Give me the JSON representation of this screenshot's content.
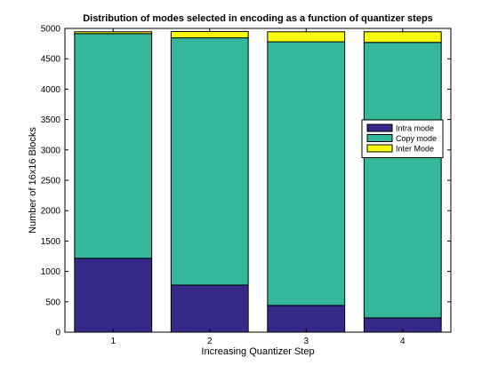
{
  "chart_data": {
    "type": "bar",
    "stacked": true,
    "title": "Distribution of modes selected in encoding as a function of quantizer steps",
    "xlabel": "Increasing Quantizer Step",
    "ylabel": "Number of 16x16 Blocks",
    "categories": [
      "1",
      "2",
      "3",
      "4"
    ],
    "ylim": [
      0,
      5000
    ],
    "yticks": [
      0,
      500,
      1000,
      1500,
      2000,
      2500,
      3000,
      3500,
      4000,
      4500,
      5000
    ],
    "grid": false,
    "legend_position": "right",
    "series": [
      {
        "name": "Intra mode",
        "color": "#352a87",
        "values": [
          1215,
          775,
          440,
          235
        ]
      },
      {
        "name": "Copy mode",
        "color": "#35b79b",
        "values": [
          3700,
          4070,
          4340,
          4535
        ]
      },
      {
        "name": "Inter Mode",
        "color": "#f9fb0e",
        "values": [
          30,
          105,
          165,
          175
        ]
      }
    ]
  }
}
